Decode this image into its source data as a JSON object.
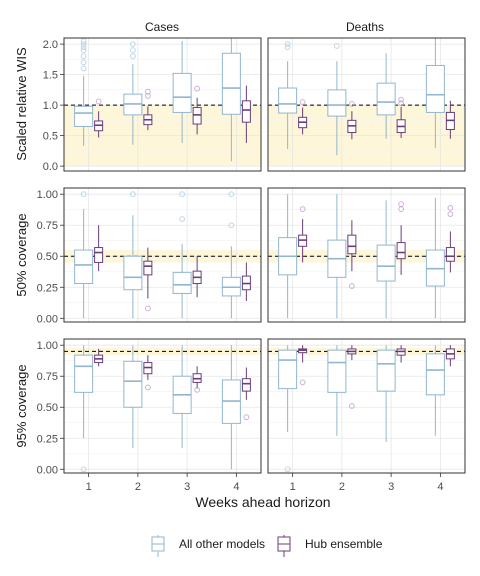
{
  "chart_data": {
    "type": "boxplot",
    "facet_columns": [
      "Cases",
      "Deaths"
    ],
    "facet_rows": [
      {
        "ylabel": "Scaled relative WIS",
        "ylim": [
          -0.08,
          2.1
        ],
        "ticks": [
          "0.0",
          "0.5",
          "1.0",
          "1.5",
          "2.0"
        ],
        "tick_values": [
          0,
          0.5,
          1,
          1.5,
          2
        ],
        "band": [
          0,
          1
        ],
        "ref_line": 1.0
      },
      {
        "ylabel": "50% coverage",
        "ylim": [
          -0.03,
          1.05
        ],
        "ticks": [
          "0.00",
          "0.25",
          "0.50",
          "0.75",
          "1.00"
        ],
        "tick_values": [
          0,
          0.25,
          0.5,
          0.75,
          1
        ],
        "band": [
          0.45,
          0.55
        ],
        "ref_line": 0.5
      },
      {
        "ylabel": "95% coverage",
        "ylim": [
          -0.03,
          1.05
        ],
        "ticks": [
          "0.00",
          "0.25",
          "0.50",
          "0.75",
          "1.00"
        ],
        "tick_values": [
          0,
          0.25,
          0.5,
          0.75,
          1
        ],
        "band": [
          0.92,
          0.98
        ],
        "ref_line": 0.95
      }
    ],
    "x_ticks": [
      "1",
      "2",
      "3",
      "4"
    ],
    "xlabel": "Weeks ahead horizon",
    "legend": {
      "position": "bottom",
      "entries": [
        "All other models",
        "Hub ensemble"
      ]
    },
    "colors": {
      "all_other": "#92b6cf",
      "hub": "#6a3d7a",
      "band": "#fdf6d8",
      "hub_outlier": "#c39bcf",
      "other_outlier": "#b3cde0"
    },
    "panels": [
      {
        "row": 0,
        "col": 0,
        "all_other": [
          {
            "h": 1,
            "q1": 0.65,
            "med": 0.87,
            "q3": 0.98,
            "lo": 0.33,
            "hi": 1.48,
            "out": [
              1.6,
              1.7,
              1.8,
              1.9,
              1.95,
              2.0,
              2.05
            ]
          },
          {
            "h": 2,
            "q1": 0.84,
            "med": 1.02,
            "q3": 1.18,
            "lo": 0.35,
            "hi": 1.67,
            "out": [
              1.8,
              1.9,
              2.0
            ]
          },
          {
            "h": 3,
            "q1": 0.88,
            "med": 1.13,
            "q3": 1.52,
            "lo": 0.38,
            "hi": 2.05,
            "out": []
          },
          {
            "h": 4,
            "q1": 0.85,
            "med": 1.28,
            "q3": 1.85,
            "lo": 0.08,
            "hi": 2.1,
            "out": []
          }
        ],
        "hub": [
          {
            "h": 1,
            "q1": 0.58,
            "med": 0.67,
            "q3": 0.74,
            "lo": 0.47,
            "hi": 0.9,
            "out": [
              1.06
            ]
          },
          {
            "h": 2,
            "q1": 0.68,
            "med": 0.76,
            "q3": 0.84,
            "lo": 0.59,
            "hi": 0.98,
            "out": [
              1.15,
              1.22
            ]
          },
          {
            "h": 3,
            "q1": 0.69,
            "med": 0.84,
            "q3": 0.96,
            "lo": 0.52,
            "hi": 1.12,
            "out": [
              1.27
            ]
          },
          {
            "h": 4,
            "q1": 0.72,
            "med": 0.92,
            "q3": 1.07,
            "lo": 0.38,
            "hi": 1.32,
            "out": []
          }
        ]
      },
      {
        "row": 0,
        "col": 1,
        "all_other": [
          {
            "h": 1,
            "q1": 0.87,
            "med": 1.02,
            "q3": 1.28,
            "lo": 0.28,
            "hi": 1.72,
            "out": [
              1.95,
              2.0
            ]
          },
          {
            "h": 2,
            "q1": 0.82,
            "med": 1.0,
            "q3": 1.25,
            "lo": 0.18,
            "hi": 1.72,
            "out": [
              1.97
            ]
          },
          {
            "h": 3,
            "q1": 0.84,
            "med": 1.05,
            "q3": 1.36,
            "lo": 0.45,
            "hi": 1.85,
            "out": []
          },
          {
            "h": 4,
            "q1": 0.88,
            "med": 1.17,
            "q3": 1.65,
            "lo": 0.3,
            "hi": 2.1,
            "out": []
          }
        ],
        "hub": [
          {
            "h": 1,
            "q1": 0.63,
            "med": 0.72,
            "q3": 0.8,
            "lo": 0.52,
            "hi": 0.96,
            "out": [
              1.05
            ]
          },
          {
            "h": 2,
            "q1": 0.55,
            "med": 0.66,
            "q3": 0.75,
            "lo": 0.44,
            "hi": 0.9,
            "out": [
              1.02
            ]
          },
          {
            "h": 3,
            "q1": 0.55,
            "med": 0.65,
            "q3": 0.76,
            "lo": 0.46,
            "hi": 0.97,
            "out": [
              1.03,
              1.09
            ]
          },
          {
            "h": 4,
            "q1": 0.6,
            "med": 0.75,
            "q3": 0.88,
            "lo": 0.45,
            "hi": 1.07,
            "out": []
          }
        ]
      },
      {
        "row": 1,
        "col": 0,
        "all_other": [
          {
            "h": 1,
            "q1": 0.28,
            "med": 0.43,
            "q3": 0.55,
            "lo": 0.0,
            "hi": 0.88,
            "out": [
              1.0
            ]
          },
          {
            "h": 2,
            "q1": 0.23,
            "med": 0.33,
            "q3": 0.5,
            "lo": 0.0,
            "hi": 0.83,
            "out": [
              1.0
            ]
          },
          {
            "h": 3,
            "q1": 0.2,
            "med": 0.27,
            "q3": 0.37,
            "lo": 0.0,
            "hi": 0.6,
            "out": [
              0.8,
              1.0
            ]
          },
          {
            "h": 4,
            "q1": 0.18,
            "med": 0.25,
            "q3": 0.33,
            "lo": 0.0,
            "hi": 0.58,
            "out": [
              0.75,
              1.0
            ]
          }
        ],
        "hub": [
          {
            "h": 1,
            "q1": 0.45,
            "med": 0.53,
            "q3": 0.57,
            "lo": 0.38,
            "hi": 0.75,
            "out": []
          },
          {
            "h": 2,
            "q1": 0.35,
            "med": 0.42,
            "q3": 0.46,
            "lo": 0.16,
            "hi": 0.57,
            "out": [
              0.08
            ]
          },
          {
            "h": 3,
            "q1": 0.28,
            "med": 0.33,
            "q3": 0.38,
            "lo": 0.17,
            "hi": 0.5,
            "out": []
          },
          {
            "h": 4,
            "q1": 0.23,
            "med": 0.28,
            "q3": 0.34,
            "lo": 0.14,
            "hi": 0.45,
            "out": []
          }
        ]
      },
      {
        "row": 1,
        "col": 1,
        "all_other": [
          {
            "h": 1,
            "q1": 0.35,
            "med": 0.5,
            "q3": 0.65,
            "lo": 0.0,
            "hi": 1.0,
            "out": []
          },
          {
            "h": 2,
            "q1": 0.33,
            "med": 0.48,
            "q3": 0.63,
            "lo": 0.0,
            "hi": 1.0,
            "out": []
          },
          {
            "h": 3,
            "q1": 0.3,
            "med": 0.42,
            "q3": 0.59,
            "lo": 0.0,
            "hi": 0.95,
            "out": []
          },
          {
            "h": 4,
            "q1": 0.26,
            "med": 0.4,
            "q3": 0.55,
            "lo": 0.0,
            "hi": 0.97,
            "out": []
          }
        ],
        "hub": [
          {
            "h": 1,
            "q1": 0.58,
            "med": 0.63,
            "q3": 0.67,
            "lo": 0.45,
            "hi": 0.8,
            "out": [
              0.88
            ]
          },
          {
            "h": 2,
            "q1": 0.52,
            "med": 0.58,
            "q3": 0.67,
            "lo": 0.38,
            "hi": 0.79,
            "out": [
              0.26
            ]
          },
          {
            "h": 3,
            "q1": 0.48,
            "med": 0.53,
            "q3": 0.61,
            "lo": 0.35,
            "hi": 0.75,
            "out": [
              0.88,
              0.92
            ]
          },
          {
            "h": 4,
            "q1": 0.46,
            "med": 0.5,
            "q3": 0.57,
            "lo": 0.37,
            "hi": 0.7,
            "out": [
              0.84,
              0.89
            ]
          }
        ]
      },
      {
        "row": 2,
        "col": 0,
        "all_other": [
          {
            "h": 1,
            "q1": 0.62,
            "med": 0.83,
            "q3": 0.92,
            "lo": 0.25,
            "hi": 1.0,
            "out": [
              0.0
            ]
          },
          {
            "h": 2,
            "q1": 0.5,
            "med": 0.71,
            "q3": 0.87,
            "lo": 0.17,
            "hi": 1.0,
            "out": []
          },
          {
            "h": 3,
            "q1": 0.45,
            "med": 0.6,
            "q3": 0.75,
            "lo": 0.17,
            "hi": 1.0,
            "out": []
          },
          {
            "h": 4,
            "q1": 0.37,
            "med": 0.55,
            "q3": 0.72,
            "lo": 0.0,
            "hi": 1.0,
            "out": []
          }
        ],
        "hub": [
          {
            "h": 1,
            "q1": 0.86,
            "med": 0.89,
            "q3": 0.92,
            "lo": 0.83,
            "hi": 0.97,
            "out": []
          },
          {
            "h": 2,
            "q1": 0.77,
            "med": 0.82,
            "q3": 0.86,
            "lo": 0.72,
            "hi": 0.92,
            "out": [
              0.66
            ]
          },
          {
            "h": 3,
            "q1": 0.7,
            "med": 0.73,
            "q3": 0.77,
            "lo": 0.65,
            "hi": 0.83,
            "out": [
              0.64
            ]
          },
          {
            "h": 4,
            "q1": 0.63,
            "med": 0.69,
            "q3": 0.73,
            "lo": 0.56,
            "hi": 0.82,
            "out": [
              0.42
            ]
          }
        ]
      },
      {
        "row": 2,
        "col": 1,
        "all_other": [
          {
            "h": 1,
            "q1": 0.65,
            "med": 0.88,
            "q3": 0.96,
            "lo": 0.3,
            "hi": 1.0,
            "out": [
              0.0
            ]
          },
          {
            "h": 2,
            "q1": 0.62,
            "med": 0.86,
            "q3": 0.96,
            "lo": 0.27,
            "hi": 1.0,
            "out": []
          },
          {
            "h": 3,
            "q1": 0.63,
            "med": 0.85,
            "q3": 0.96,
            "lo": 0.22,
            "hi": 1.0,
            "out": []
          },
          {
            "h": 4,
            "q1": 0.6,
            "med": 0.8,
            "q3": 0.93,
            "lo": 0.27,
            "hi": 1.0,
            "out": []
          }
        ],
        "hub": [
          {
            "h": 1,
            "q1": 0.94,
            "med": 0.96,
            "q3": 0.97,
            "lo": 0.86,
            "hi": 1.0,
            "out": [
              0.7
            ]
          },
          {
            "h": 2,
            "q1": 0.93,
            "med": 0.95,
            "q3": 0.97,
            "lo": 0.88,
            "hi": 1.0,
            "out": [
              0.51
            ]
          },
          {
            "h": 3,
            "q1": 0.92,
            "med": 0.95,
            "q3": 0.97,
            "lo": 0.86,
            "hi": 1.0,
            "out": []
          },
          {
            "h": 4,
            "q1": 0.89,
            "med": 0.93,
            "q3": 0.97,
            "lo": 0.83,
            "hi": 1.0,
            "out": []
          }
        ]
      }
    ]
  }
}
